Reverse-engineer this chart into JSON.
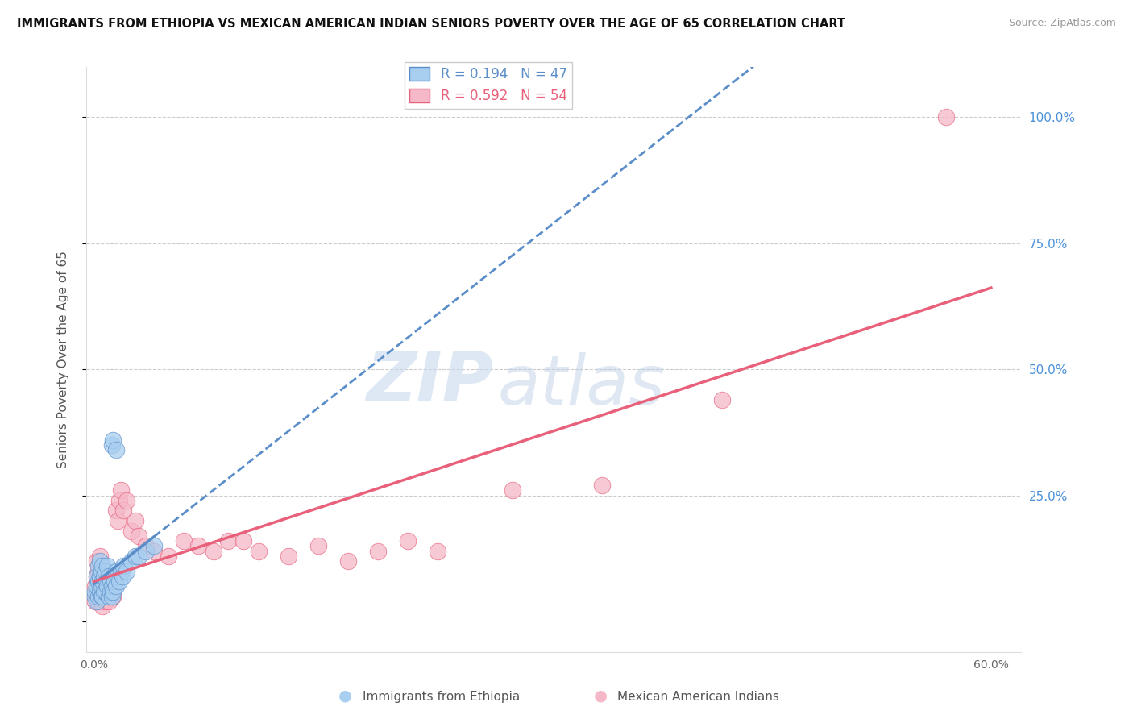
{
  "title": "IMMIGRANTS FROM ETHIOPIA VS MEXICAN AMERICAN INDIAN SENIORS POVERTY OVER THE AGE OF 65 CORRELATION CHART",
  "source": "Source: ZipAtlas.com",
  "ylabel": "Seniors Poverty Over the Age of 65",
  "y_ticks": [
    0.0,
    0.25,
    0.5,
    0.75,
    1.0
  ],
  "y_tick_labels": [
    "",
    "25.0%",
    "50.0%",
    "75.0%",
    "100.0%"
  ],
  "xlim": [
    -0.005,
    0.62
  ],
  "ylim": [
    -0.06,
    1.1
  ],
  "R_ethiopia": 0.194,
  "N_ethiopia": 47,
  "R_mexican": 0.592,
  "N_mexican": 54,
  "color_ethiopia": "#a8cef0",
  "color_mexican": "#f5b8c8",
  "color_trendline_ethiopia": "#5b8ec9",
  "color_trendline_mexican": "#e8607a",
  "legend_label_ethiopia": "Immigrants from Ethiopia",
  "legend_label_mexican": "Mexican American Indians",
  "watermark_zip": "ZIP",
  "watermark_atlas": "atlas",
  "eth_trend_slope": 0.72,
  "eth_trend_intercept": 0.04,
  "mex_trend_slope": 0.83,
  "mex_trend_intercept": 0.045,
  "ethiopia_x": [
    0.001,
    0.001,
    0.002,
    0.002,
    0.002,
    0.003,
    0.003,
    0.003,
    0.004,
    0.004,
    0.004,
    0.005,
    0.005,
    0.005,
    0.006,
    0.006,
    0.006,
    0.007,
    0.007,
    0.008,
    0.008,
    0.009,
    0.009,
    0.01,
    0.01,
    0.011,
    0.011,
    0.012,
    0.012,
    0.013,
    0.014,
    0.015,
    0.015,
    0.016,
    0.017,
    0.018,
    0.019,
    0.02,
    0.022,
    0.025,
    0.028,
    0.03,
    0.035,
    0.04,
    0.012,
    0.013,
    0.015
  ],
  "ethiopia_y": [
    0.05,
    0.06,
    0.04,
    0.07,
    0.09,
    0.05,
    0.08,
    0.11,
    0.06,
    0.09,
    0.12,
    0.05,
    0.07,
    0.1,
    0.05,
    0.08,
    0.11,
    0.06,
    0.09,
    0.06,
    0.1,
    0.07,
    0.11,
    0.05,
    0.09,
    0.06,
    0.08,
    0.05,
    0.07,
    0.06,
    0.08,
    0.07,
    0.1,
    0.09,
    0.08,
    0.1,
    0.09,
    0.11,
    0.1,
    0.12,
    0.13,
    0.13,
    0.14,
    0.15,
    0.35,
    0.36,
    0.34
  ],
  "mexican_x": [
    0.001,
    0.001,
    0.002,
    0.002,
    0.002,
    0.003,
    0.003,
    0.003,
    0.004,
    0.004,
    0.004,
    0.005,
    0.005,
    0.005,
    0.006,
    0.006,
    0.007,
    0.007,
    0.008,
    0.008,
    0.009,
    0.01,
    0.011,
    0.012,
    0.013,
    0.014,
    0.015,
    0.016,
    0.017,
    0.018,
    0.02,
    0.022,
    0.025,
    0.028,
    0.03,
    0.035,
    0.04,
    0.05,
    0.06,
    0.07,
    0.08,
    0.09,
    0.1,
    0.11,
    0.13,
    0.15,
    0.17,
    0.19,
    0.21,
    0.23,
    0.28,
    0.34,
    0.42,
    0.57
  ],
  "mexican_y": [
    0.04,
    0.07,
    0.05,
    0.09,
    0.12,
    0.04,
    0.07,
    0.1,
    0.05,
    0.08,
    0.13,
    0.04,
    0.07,
    0.1,
    0.03,
    0.06,
    0.05,
    0.08,
    0.04,
    0.09,
    0.06,
    0.04,
    0.07,
    0.09,
    0.05,
    0.08,
    0.22,
    0.2,
    0.24,
    0.26,
    0.22,
    0.24,
    0.18,
    0.2,
    0.17,
    0.15,
    0.14,
    0.13,
    0.16,
    0.15,
    0.14,
    0.16,
    0.16,
    0.14,
    0.13,
    0.15,
    0.12,
    0.14,
    0.16,
    0.14,
    0.26,
    0.27,
    0.44,
    1.0
  ]
}
